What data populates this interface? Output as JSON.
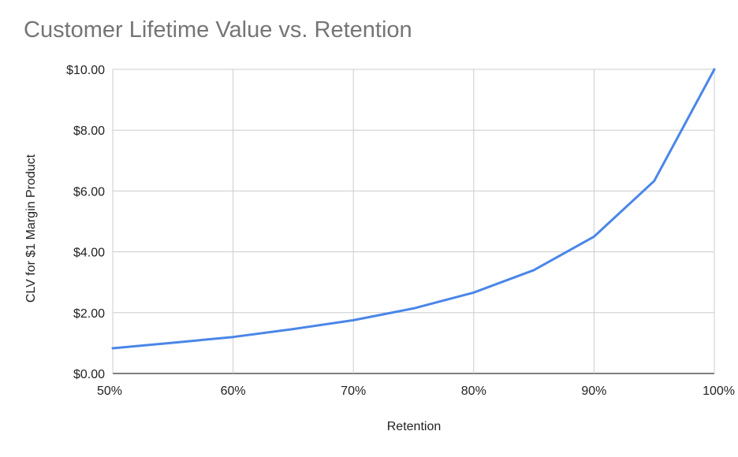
{
  "chart_data": {
    "type": "line",
    "title": "Customer Lifetime Value vs. Retention",
    "xlabel": "Retention",
    "ylabel": "CLV for $1 Margin Product",
    "x_ticks": [
      "50%",
      "60%",
      "70%",
      "80%",
      "90%",
      "100%"
    ],
    "y_ticks": [
      "$0.00",
      "$2.00",
      "$4.00",
      "$6.00",
      "$8.00",
      "$10.00"
    ],
    "xlim": [
      0.5,
      1.0
    ],
    "ylim": [
      0,
      10
    ],
    "grid": true,
    "series": [
      {
        "color": "#4a86e8",
        "x": [
          0.5,
          0.55,
          0.6,
          0.65,
          0.7,
          0.75,
          0.8,
          0.85,
          0.9,
          0.95,
          1.0
        ],
        "y": [
          0.83,
          1.01,
          1.2,
          1.46,
          1.75,
          2.14,
          2.66,
          3.4,
          4.5,
          6.33,
          10.0
        ]
      }
    ]
  }
}
